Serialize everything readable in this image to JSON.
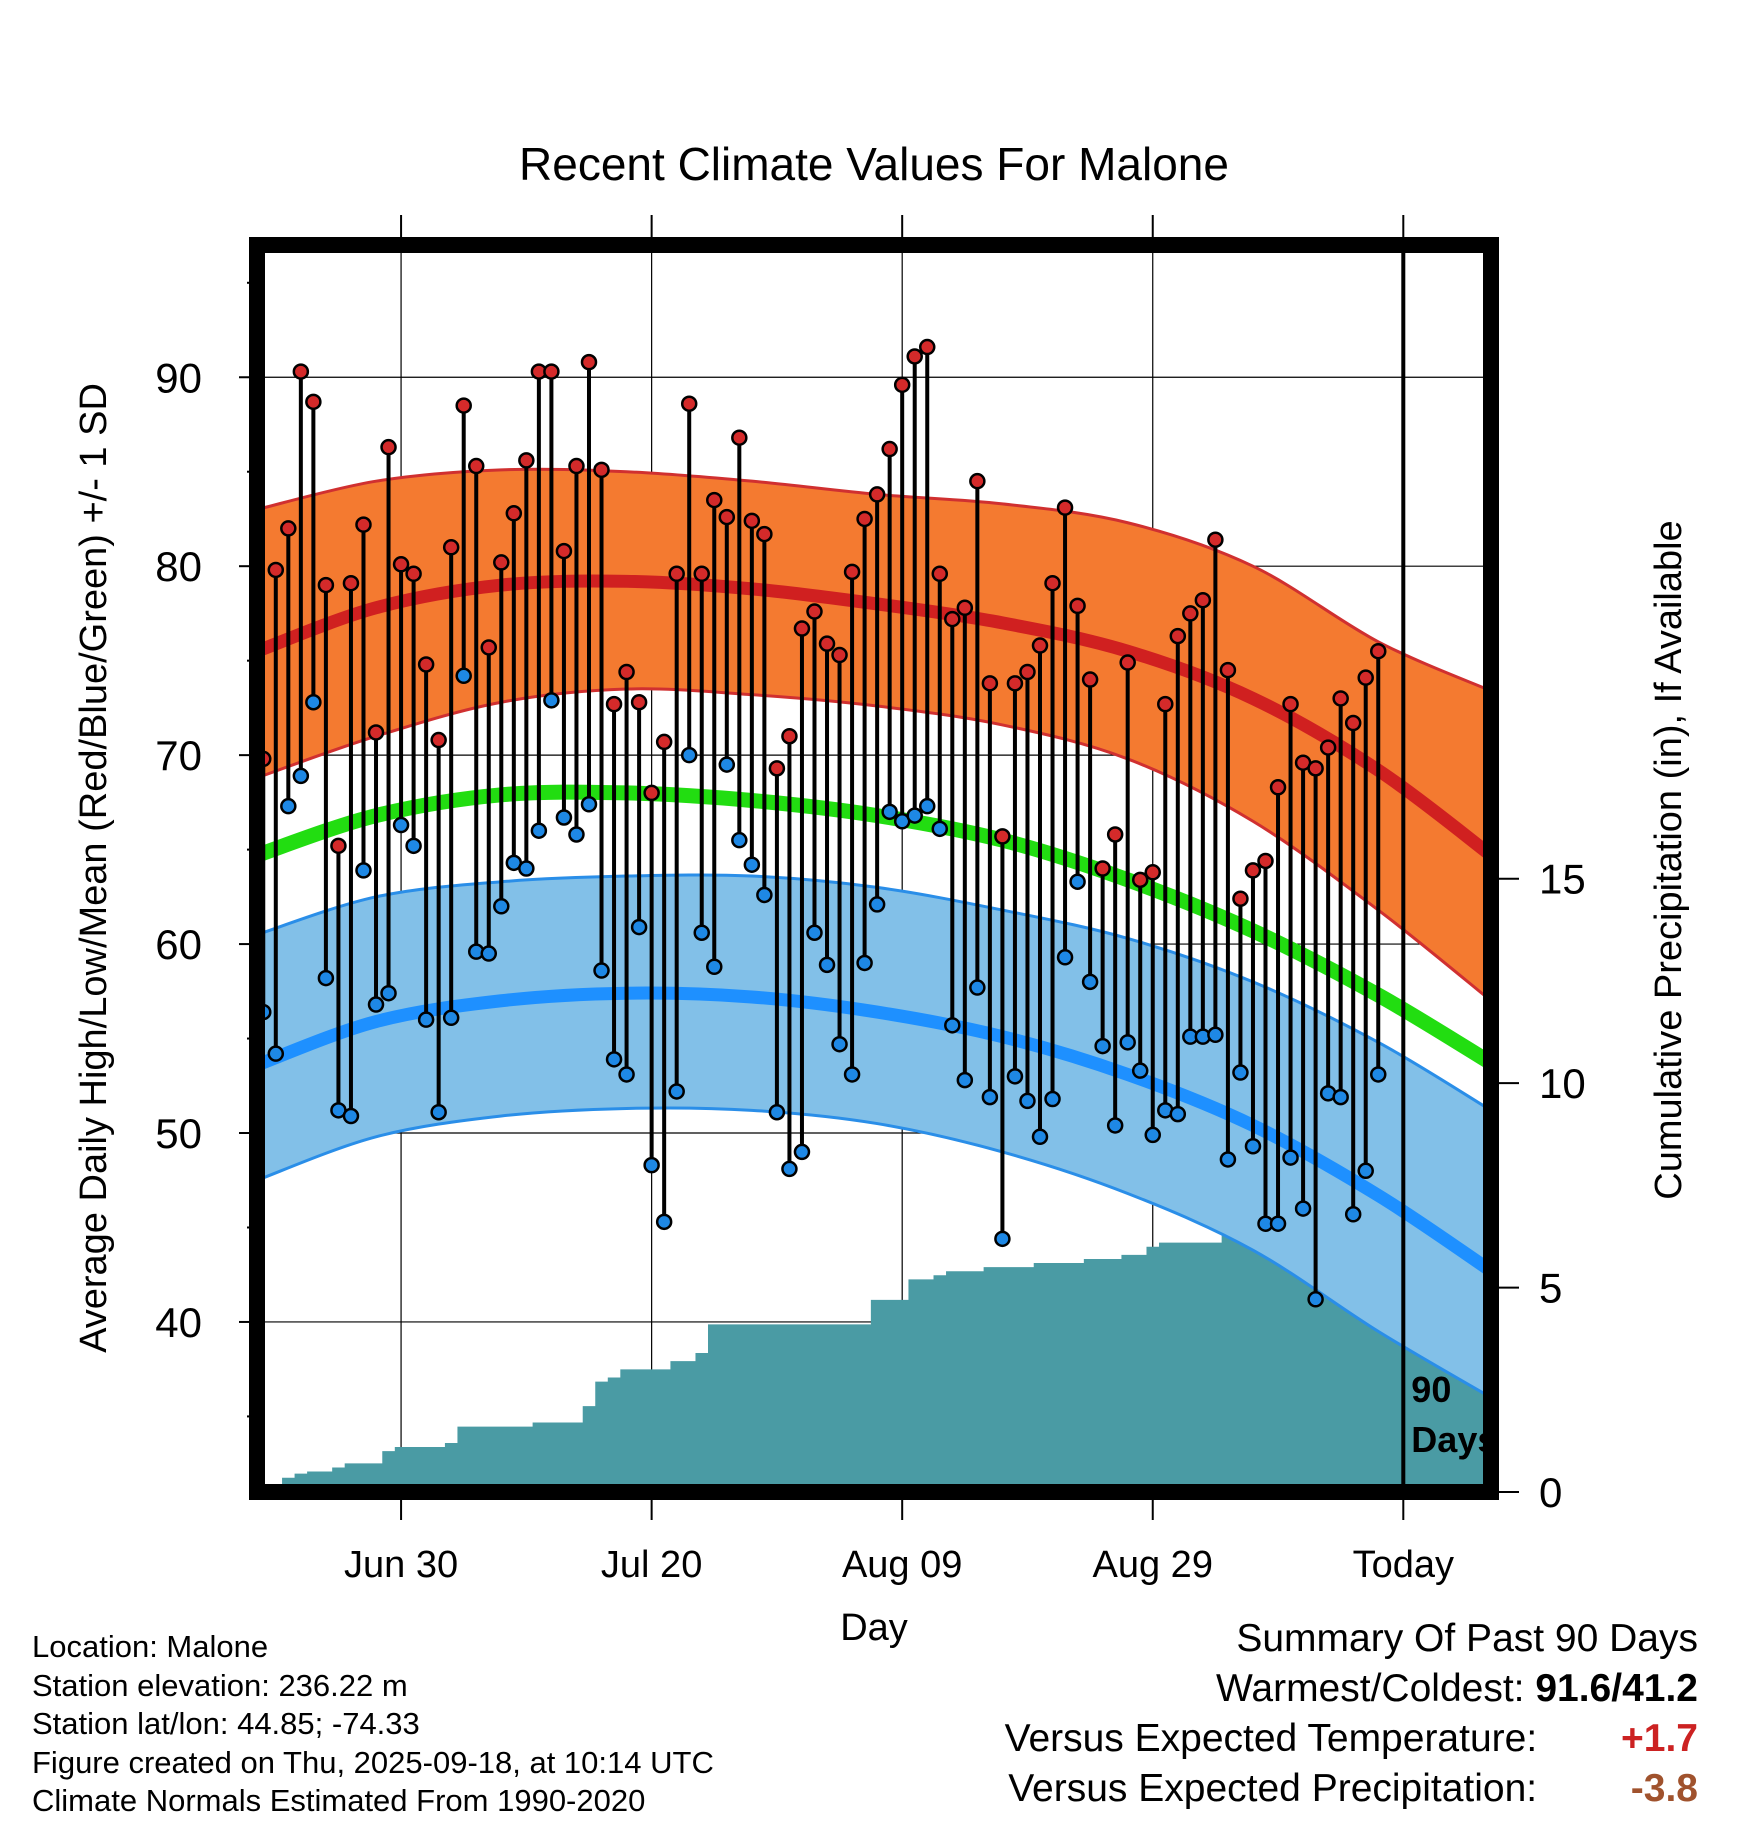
{
  "page": {
    "location_line": "Location: Malone",
    "elevation_line": "Station elevation: 236.22 m",
    "latlon_line": "Station lat/lon: 44.85; -74.33",
    "created_line": "Figure created on Thu, 2025-09-18, at 10:14 UTC",
    "normals_line": "Climate Normals Estimated From 1990-2020"
  },
  "summary": {
    "title": "Summary Of Past 90 Days",
    "warmest_label": "Warmest/Coldest:",
    "warmest_value": "91.6/41.2",
    "temp_label": "Versus Expected Temperature:",
    "temp_value": "+1.7",
    "precip_label": "Versus Expected Precipitation:",
    "precip_value": "-3.8",
    "colors": {
      "temp_value": "#cc2222",
      "precip_value": "#a0522d"
    }
  },
  "chart_data": {
    "type": "line",
    "title": "Recent Climate Values For Malone",
    "xlabel": "Day",
    "ylabel": "Average Daily High/Low/Mean (Red/Blue/Green) +/- 1 SD",
    "y2label": "Cumulative Precipitation (in), If Available",
    "ylim": [
      31,
      97
    ],
    "y_ticks": [
      40,
      50,
      60,
      70,
      80,
      90
    ],
    "y2lim": [
      0,
      30.5
    ],
    "y2_ticks": [
      0,
      5,
      10,
      15
    ],
    "x_domain": [
      -89.5,
      9
    ],
    "x_ticks": [
      {
        "x": -78,
        "label": "Jun 30"
      },
      {
        "x": -58,
        "label": "Jul 20"
      },
      {
        "x": -38,
        "label": "Aug 09"
      },
      {
        "x": -18,
        "label": "Aug 29"
      },
      {
        "x": 2,
        "label": "Today"
      }
    ],
    "grid": true,
    "today_x": 2,
    "period_label": "90 Days",
    "colors": {
      "high_band": "#f47a30",
      "high_line": "#d02020",
      "high_edge": "#d03030",
      "mean_line": "#22dd11",
      "low_band": "#82c0e8",
      "low_line": "#1e90ff",
      "low_edge": "#2a8ee8",
      "precip_fill": "#4a9ba4",
      "high_marker": "#d42a2a",
      "low_marker": "#1e88e5"
    },
    "normals": {
      "x": [
        -89.5,
        -80,
        -70,
        -60,
        -50,
        -40,
        -30,
        -20,
        -10,
        0,
        9
      ],
      "high_mean": [
        75.5,
        77.8,
        79.0,
        79.2,
        78.8,
        78.0,
        77.0,
        75.5,
        73.0,
        69.2,
        64.7
      ],
      "high_upper": [
        83.0,
        84.5,
        85.1,
        85.0,
        84.5,
        83.8,
        83.3,
        82.3,
        80.0,
        76.0,
        73.4
      ],
      "high_lower": [
        68.8,
        71.0,
        72.8,
        73.5,
        73.2,
        72.6,
        71.6,
        69.8,
        66.5,
        61.8,
        57.0
      ],
      "mean_mean": [
        64.7,
        66.8,
        67.9,
        68.0,
        67.6,
        66.8,
        65.5,
        63.4,
        60.7,
        57.3,
        53.7
      ],
      "low_mean": [
        53.6,
        55.9,
        57.0,
        57.4,
        57.2,
        56.4,
        55.1,
        53.1,
        50.4,
        46.7,
        42.7
      ],
      "low_upper": [
        60.5,
        62.5,
        63.3,
        63.6,
        63.6,
        63.0,
        61.8,
        60.3,
        58.0,
        54.8,
        51.2
      ],
      "low_lower": [
        47.5,
        49.8,
        50.9,
        51.3,
        51.2,
        50.5,
        49.0,
        46.8,
        43.8,
        39.5,
        36.0
      ]
    },
    "series": [
      {
        "name": "Daily High",
        "values": [
          69.8,
          79.8,
          82.0,
          90.3,
          88.7,
          79.0,
          65.2,
          79.1,
          82.2,
          71.2,
          86.3,
          80.1,
          79.6,
          74.8,
          70.8,
          81.0,
          88.5,
          85.3,
          75.7,
          80.2,
          82.8,
          85.6,
          90.3,
          90.3,
          80.8,
          85.3,
          90.8,
          85.1,
          72.7,
          74.4,
          72.8,
          68.0,
          70.7,
          79.6,
          88.6,
          79.6,
          83.5,
          82.6,
          86.8,
          82.4,
          81.7,
          69.3,
          71.0,
          76.7,
          77.6,
          75.9,
          75.3,
          79.7,
          82.5,
          83.8,
          86.2,
          89.6,
          91.1,
          91.6,
          79.6,
          77.2,
          77.8,
          84.5,
          73.8,
          65.7,
          73.8,
          74.4,
          75.8,
          79.1,
          83.1,
          77.9,
          74.0,
          64.0,
          65.8,
          74.9,
          63.4,
          63.8,
          72.7,
          76.3,
          77.5,
          78.2,
          81.4,
          74.5,
          62.4,
          63.9,
          64.4,
          68.3,
          72.7,
          69.6,
          69.3,
          70.4,
          73.0,
          71.7,
          74.1,
          75.5
        ]
      },
      {
        "name": "Daily Low",
        "values": [
          56.4,
          54.2,
          67.3,
          68.9,
          72.8,
          58.2,
          51.2,
          50.9,
          63.9,
          56.8,
          57.4,
          66.3,
          65.2,
          56.0,
          51.1,
          56.1,
          74.2,
          59.6,
          59.5,
          62.0,
          64.3,
          64.0,
          66.0,
          72.9,
          66.7,
          65.8,
          67.4,
          58.6,
          53.9,
          53.1,
          60.9,
          48.3,
          45.3,
          52.2,
          70.0,
          60.6,
          58.8,
          69.5,
          65.5,
          64.2,
          62.6,
          51.1,
          48.1,
          49.0,
          60.6,
          58.9,
          54.7,
          53.1,
          59.0,
          62.1,
          67.0,
          66.5,
          66.8,
          67.3,
          66.1,
          55.7,
          52.8,
          57.7,
          51.9,
          44.4,
          53.0,
          51.7,
          49.8,
          51.8,
          59.3,
          63.3,
          58.0,
          54.6,
          50.4,
          54.8,
          53.3,
          49.9,
          51.2,
          51.0,
          55.1,
          55.1,
          55.2,
          48.6,
          53.2,
          49.3,
          45.2,
          45.2,
          48.7,
          46.0,
          41.2,
          52.1,
          51.9,
          45.7,
          48.0,
          53.1
        ]
      },
      {
        "name": "Cumulative Precipitation",
        "values": [
          0.05,
          0.05,
          0.35,
          0.45,
          0.5,
          0.5,
          0.6,
          0.7,
          0.7,
          0.7,
          1.0,
          1.1,
          1.1,
          1.1,
          1.1,
          1.2,
          1.6,
          1.6,
          1.6,
          1.6,
          1.6,
          1.6,
          1.7,
          1.7,
          1.7,
          1.7,
          2.1,
          2.7,
          2.8,
          3.0,
          3.0,
          3.0,
          3.0,
          3.2,
          3.2,
          3.4,
          4.1,
          4.1,
          4.1,
          4.1,
          4.1,
          4.1,
          4.1,
          4.1,
          4.1,
          4.1,
          4.1,
          4.1,
          4.1,
          4.7,
          4.7,
          4.7,
          5.2,
          5.2,
          5.3,
          5.4,
          5.4,
          5.4,
          5.5,
          5.5,
          5.5,
          5.5,
          5.6,
          5.6,
          5.6,
          5.6,
          5.7,
          5.7,
          5.7,
          5.8,
          5.8,
          6.0,
          6.1,
          6.1,
          6.1,
          6.1,
          6.1,
          6.5,
          6.8,
          6.9,
          7.0,
          7.1,
          7.2,
          7.2,
          7.2,
          7.3,
          7.3,
          7.3,
          7.3,
          7.3
        ]
      }
    ]
  }
}
